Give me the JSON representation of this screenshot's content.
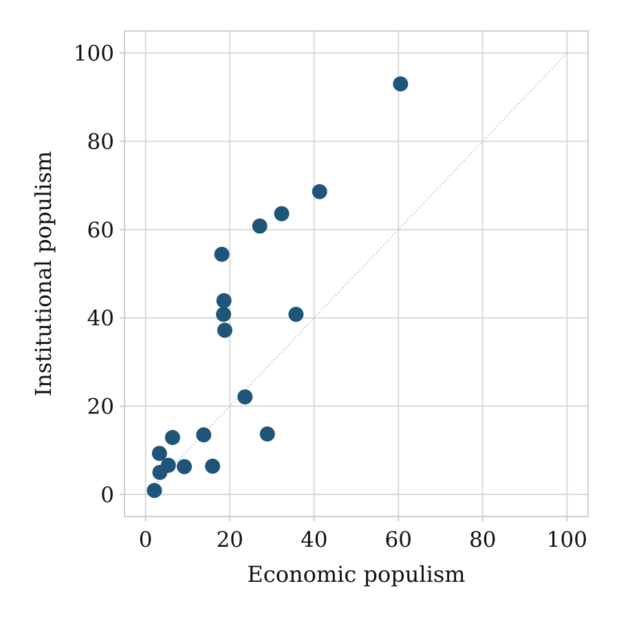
{
  "chart_data": {
    "type": "scatter",
    "title": "",
    "xlabel": "Economic populism",
    "ylabel": "Institutional populism",
    "xlim": [
      -5,
      105
    ],
    "ylim": [
      -5,
      105
    ],
    "x_ticks": [
      0,
      20,
      40,
      60,
      80,
      100
    ],
    "y_ticks": [
      0,
      20,
      40,
      60,
      80,
      100
    ],
    "x_tick_labels": [
      "0",
      "20",
      "40",
      "60",
      "80",
      "100"
    ],
    "y_tick_labels": [
      "0",
      "20",
      "40",
      "60",
      "80",
      "100"
    ],
    "grid": true,
    "reference_line": "y = x",
    "marker_color": "#1f5578",
    "series": [
      {
        "points": [
          {
            "x": 60.5,
            "y": 93.0
          },
          {
            "x": 41.3,
            "y": 68.6
          },
          {
            "x": 32.3,
            "y": 63.6
          },
          {
            "x": 27.1,
            "y": 60.8
          },
          {
            "x": 18.1,
            "y": 54.4
          },
          {
            "x": 18.6,
            "y": 43.9
          },
          {
            "x": 18.5,
            "y": 40.8
          },
          {
            "x": 18.8,
            "y": 37.2
          },
          {
            "x": 35.7,
            "y": 40.8
          },
          {
            "x": 23.6,
            "y": 22.1
          },
          {
            "x": 28.9,
            "y": 13.7
          },
          {
            "x": 13.8,
            "y": 13.5
          },
          {
            "x": 6.4,
            "y": 12.9
          },
          {
            "x": 3.3,
            "y": 9.3
          },
          {
            "x": 5.4,
            "y": 6.6
          },
          {
            "x": 9.2,
            "y": 6.3
          },
          {
            "x": 15.9,
            "y": 6.4
          },
          {
            "x": 3.4,
            "y": 5.0
          },
          {
            "x": 2.1,
            "y": 0.9
          }
        ]
      }
    ]
  }
}
